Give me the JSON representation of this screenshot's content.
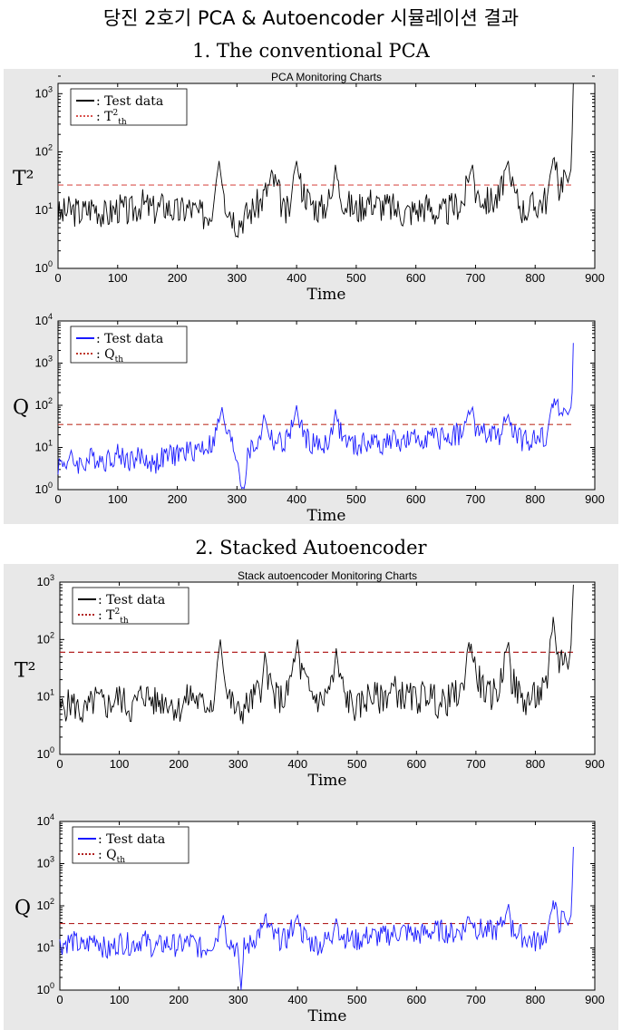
{
  "page": {
    "title": "당진 2호기 PCA & Autoencoder 시뮬레이션 결과",
    "section1": "1. The conventional PCA",
    "section2": "2. Stacked  Autoencoder"
  },
  "chart_data": [
    {
      "type": "line",
      "title": "PCA Monitoring Charts",
      "ylabel": "T²",
      "xlabel": "Time",
      "yscale": "log",
      "ylim": [
        1,
        1500
      ],
      "xlim": [
        0,
        900
      ],
      "xticks": [
        "0",
        "100",
        "200",
        "300",
        "400",
        "500",
        "600",
        "700",
        "800",
        "900"
      ],
      "yticks": [
        {
          "v": 1,
          "base": "10",
          "exp": "0"
        },
        {
          "v": 10,
          "base": "10",
          "exp": "1"
        },
        {
          "v": 100,
          "base": "10",
          "exp": "2"
        },
        {
          "v": 1000,
          "base": "10",
          "exp": "3"
        }
      ],
      "colors": {
        "data": "#000000",
        "threshold": "#d9534f"
      },
      "legend": {
        "data": ": Test data",
        "thr_prefix": ": T",
        "thr_sup": "2",
        "thr_sub": "th",
        "placement": "top-left"
      },
      "threshold": 27,
      "series": [
        {
          "name": "Test data",
          "x": [
            0,
            20,
            40,
            60,
            80,
            100,
            120,
            140,
            160,
            180,
            200,
            220,
            240,
            260,
            265,
            270,
            275,
            280,
            300,
            320,
            340,
            360,
            370,
            380,
            390,
            395,
            400,
            405,
            420,
            440,
            460,
            465,
            470,
            480,
            500,
            520,
            540,
            560,
            580,
            600,
            620,
            640,
            660,
            680,
            690,
            695,
            700,
            720,
            740,
            750,
            755,
            760,
            780,
            800,
            820,
            825,
            830,
            840,
            850,
            855,
            860,
            862,
            864
          ],
          "y": [
            8,
            10,
            9,
            12,
            8,
            11,
            9,
            13,
            10,
            12,
            9,
            11,
            8,
            10,
            30,
            70,
            28,
            15,
            6,
            9,
            14,
            35,
            20,
            8,
            12,
            40,
            70,
            30,
            15,
            10,
            18,
            60,
            25,
            14,
            10,
            15,
            12,
            11,
            9,
            10,
            12,
            8,
            11,
            14,
            40,
            60,
            20,
            14,
            16,
            50,
            70,
            22,
            10,
            12,
            16,
            40,
            70,
            25,
            45,
            30,
            50,
            200,
            1500
          ]
        }
      ]
    },
    {
      "type": "line",
      "ylabel": "Q",
      "xlabel": "Time",
      "yscale": "log",
      "ylim": [
        1,
        10000
      ],
      "xlim": [
        0,
        900
      ],
      "xticks": [
        "0",
        "100",
        "200",
        "300",
        "400",
        "500",
        "600",
        "700",
        "800",
        "900"
      ],
      "yticks": [
        {
          "v": 1,
          "base": "10",
          "exp": "0"
        },
        {
          "v": 10,
          "base": "10",
          "exp": "1"
        },
        {
          "v": 100,
          "base": "10",
          "exp": "2"
        },
        {
          "v": 1000,
          "base": "10",
          "exp": "3"
        },
        {
          "v": 10000,
          "base": "10",
          "exp": "4"
        }
      ],
      "colors": {
        "data": "#1a1aff",
        "threshold": "#c0392b"
      },
      "legend": {
        "data": ": Test data",
        "thr_prefix": ": Q",
        "thr_sup": "",
        "thr_sub": "th",
        "placement": "top-left"
      },
      "threshold": 35,
      "series": [
        {
          "name": "Test data",
          "x": [
            0,
            20,
            40,
            60,
            80,
            100,
            120,
            140,
            160,
            180,
            200,
            220,
            240,
            260,
            270,
            275,
            280,
            300,
            310,
            320,
            340,
            345,
            350,
            360,
            380,
            395,
            400,
            405,
            420,
            440,
            460,
            465,
            470,
            480,
            500,
            520,
            540,
            560,
            580,
            600,
            620,
            640,
            660,
            680,
            690,
            695,
            700,
            720,
            740,
            750,
            755,
            760,
            780,
            800,
            820,
            825,
            830,
            840,
            850,
            855,
            860,
            862,
            864
          ],
          "y": [
            4,
            5,
            4,
            6,
            5,
            7,
            5,
            6,
            4,
            6,
            7,
            8,
            10,
            12,
            40,
            90,
            30,
            6,
            1,
            8,
            15,
            60,
            35,
            14,
            12,
            40,
            100,
            30,
            14,
            10,
            20,
            80,
            30,
            15,
            10,
            14,
            12,
            15,
            13,
            15,
            18,
            16,
            20,
            22,
            60,
            90,
            30,
            18,
            20,
            40,
            60,
            25,
            14,
            16,
            20,
            60,
            150,
            70,
            80,
            60,
            90,
            200,
            3000
          ]
        }
      ]
    },
    {
      "type": "line",
      "title": "Stack autoencoder Monitoring Charts",
      "ylabel": "T²",
      "xlabel": "Time",
      "yscale": "log",
      "ylim": [
        1,
        1000
      ],
      "xlim": [
        0,
        900
      ],
      "xticks": [
        "0",
        "100",
        "200",
        "300",
        "400",
        "500",
        "600",
        "700",
        "800",
        "900"
      ],
      "yticks": [
        {
          "v": 1,
          "base": "10",
          "exp": "0"
        },
        {
          "v": 10,
          "base": "10",
          "exp": "1"
        },
        {
          "v": 100,
          "base": "10",
          "exp": "2"
        },
        {
          "v": 1000,
          "base": "10",
          "exp": "3"
        }
      ],
      "colors": {
        "data": "#000000",
        "threshold": "#b22222"
      },
      "legend": {
        "data": ": Test data",
        "thr_prefix": ": T",
        "thr_sup": "2",
        "thr_sub": "th",
        "placement": "top-left"
      },
      "threshold": 60,
      "series": [
        {
          "name": "Test data",
          "x": [
            0,
            20,
            40,
            60,
            80,
            100,
            120,
            140,
            160,
            180,
            200,
            220,
            240,
            260,
            265,
            270,
            275,
            280,
            300,
            320,
            340,
            345,
            350,
            360,
            380,
            395,
            400,
            405,
            420,
            440,
            460,
            465,
            470,
            480,
            500,
            520,
            540,
            560,
            580,
            600,
            620,
            640,
            660,
            680,
            685,
            690,
            700,
            720,
            740,
            750,
            755,
            760,
            780,
            800,
            820,
            825,
            830,
            840,
            850,
            855,
            860,
            862,
            864
          ],
          "y": [
            6,
            8,
            5,
            9,
            7,
            10,
            6,
            12,
            8,
            9,
            6,
            11,
            7,
            9,
            40,
            100,
            30,
            12,
            5,
            8,
            15,
            60,
            25,
            10,
            9,
            40,
            100,
            30,
            12,
            8,
            18,
            70,
            25,
            10,
            6,
            11,
            9,
            14,
            10,
            9,
            12,
            7,
            10,
            13,
            60,
            110,
            25,
            10,
            14,
            60,
            90,
            20,
            8,
            10,
            14,
            100,
            160,
            40,
            60,
            30,
            80,
            300,
            900
          ]
        }
      ]
    },
    {
      "type": "line",
      "ylabel": "Q",
      "xlabel": "Time",
      "yscale": "log",
      "ylim": [
        1,
        10000
      ],
      "xlim": [
        0,
        900
      ],
      "xticks": [
        "0",
        "100",
        "200",
        "300",
        "400",
        "500",
        "600",
        "700",
        "800",
        "900"
      ],
      "yticks": [
        {
          "v": 1,
          "base": "10",
          "exp": "0"
        },
        {
          "v": 10,
          "base": "10",
          "exp": "1"
        },
        {
          "v": 100,
          "base": "10",
          "exp": "2"
        },
        {
          "v": 1000,
          "base": "10",
          "exp": "3"
        },
        {
          "v": 10000,
          "base": "10",
          "exp": "4"
        }
      ],
      "colors": {
        "data": "#1a1aff",
        "threshold": "#b22222"
      },
      "legend": {
        "data": ": Test data",
        "thr_prefix": ": Q",
        "thr_sup": "",
        "thr_sub": "th",
        "placement": "top-left"
      },
      "threshold": 38,
      "series": [
        {
          "name": "Test data",
          "x": [
            0,
            20,
            40,
            60,
            80,
            100,
            120,
            140,
            160,
            180,
            200,
            220,
            240,
            260,
            270,
            275,
            280,
            300,
            305,
            310,
            320,
            340,
            345,
            360,
            380,
            395,
            400,
            405,
            420,
            440,
            460,
            465,
            470,
            480,
            500,
            520,
            540,
            560,
            580,
            600,
            620,
            640,
            660,
            680,
            690,
            700,
            720,
            740,
            750,
            755,
            760,
            780,
            800,
            820,
            825,
            830,
            840,
            850,
            855,
            860,
            862,
            864
          ],
          "y": [
            12,
            15,
            10,
            18,
            8,
            14,
            12,
            16,
            10,
            13,
            11,
            14,
            9,
            15,
            30,
            60,
            20,
            8,
            1,
            10,
            12,
            30,
            45,
            18,
            15,
            40,
            60,
            25,
            14,
            12,
            22,
            50,
            25,
            18,
            15,
            20,
            18,
            22,
            25,
            20,
            24,
            26,
            22,
            28,
            60,
            30,
            24,
            28,
            60,
            110,
            30,
            18,
            14,
            22,
            60,
            100,
            40,
            50,
            35,
            60,
            300,
            2500
          ]
        }
      ]
    }
  ]
}
